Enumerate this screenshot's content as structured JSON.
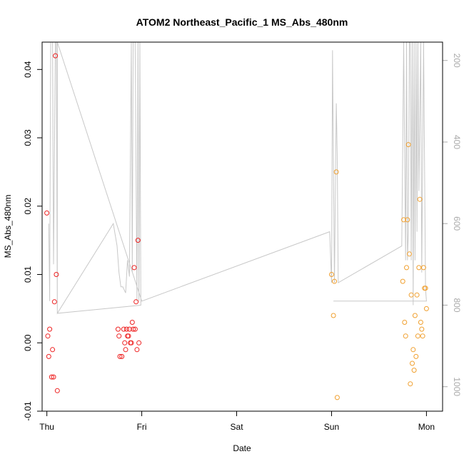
{
  "chart_data": {
    "type": "scatter",
    "title": "ATOM2 Northeast_Pacific_1 MS_Abs_480nm",
    "xlabel": "Date",
    "ylabel": "MS_Abs_480nm",
    "x_ticks": [
      "Thu",
      "Fri",
      "Sat",
      "Sun",
      "Mon"
    ],
    "xlim": [
      -0.05,
      4.17
    ],
    "ylim": [
      -0.01,
      0.044
    ],
    "y_ticks": [
      -0.01,
      0.0,
      0.01,
      0.02,
      0.03,
      0.04
    ],
    "y_tick_labels": [
      "-0.01",
      "0.00",
      "0.01",
      "0.02",
      "0.03",
      "0.04"
    ],
    "y2_ticks": [
      200,
      400,
      600,
      800,
      1000
    ],
    "y2_tick_labels": [
      "200",
      "400",
      "600",
      "800",
      "1000"
    ],
    "y2lim": [
      1060,
      155
    ],
    "y2_reversed": true,
    "grid": false,
    "colors": {
      "series_1": "#ee2222",
      "series_2": "#f0a030",
      "depth_line": "#c8c8c8"
    },
    "series": [
      {
        "color": "#ee2222",
        "points": [
          [
            0.0,
            0.019
          ],
          [
            0.01,
            0.001
          ],
          [
            0.02,
            -0.002
          ],
          [
            0.03,
            0.002
          ],
          [
            0.05,
            -0.005
          ],
          [
            0.06,
            -0.001
          ],
          [
            0.07,
            -0.005
          ],
          [
            0.08,
            0.006
          ],
          [
            0.09,
            0.042
          ],
          [
            0.1,
            0.01
          ],
          [
            0.11,
            -0.007
          ],
          [
            0.75,
            0.002
          ],
          [
            0.76,
            0.001
          ],
          [
            0.77,
            -0.002
          ],
          [
            0.79,
            -0.002
          ],
          [
            0.81,
            0.002
          ],
          [
            0.82,
            0.0
          ],
          [
            0.83,
            -0.001
          ],
          [
            0.84,
            0.002
          ],
          [
            0.85,
            0.001
          ],
          [
            0.86,
            0.001
          ],
          [
            0.87,
            0.002
          ],
          [
            0.88,
            0.0
          ],
          [
            0.89,
            0.0
          ],
          [
            0.9,
            0.003
          ],
          [
            0.91,
            0.002
          ],
          [
            0.92,
            0.011
          ],
          [
            0.93,
            0.002
          ],
          [
            0.94,
            0.006
          ],
          [
            0.95,
            -0.001
          ],
          [
            0.96,
            0.015
          ],
          [
            0.97,
            0.0
          ]
        ]
      },
      {
        "color": "#f0a030",
        "points": [
          [
            3.0,
            0.01
          ],
          [
            3.02,
            0.004
          ],
          [
            3.03,
            0.009
          ],
          [
            3.05,
            0.025
          ],
          [
            3.06,
            -0.008
          ],
          [
            3.75,
            0.009
          ],
          [
            3.76,
            0.018
          ],
          [
            3.77,
            0.003
          ],
          [
            3.78,
            0.001
          ],
          [
            3.79,
            0.011
          ],
          [
            3.8,
            0.018
          ],
          [
            3.81,
            0.029
          ],
          [
            3.82,
            0.013
          ],
          [
            3.83,
            -0.006
          ],
          [
            3.84,
            0.007
          ],
          [
            3.85,
            -0.003
          ],
          [
            3.86,
            -0.001
          ],
          [
            3.87,
            -0.004
          ],
          [
            3.88,
            0.004
          ],
          [
            3.89,
            -0.002
          ],
          [
            3.9,
            0.007
          ],
          [
            3.91,
            0.001
          ],
          [
            3.92,
            0.011
          ],
          [
            3.93,
            0.021
          ],
          [
            3.94,
            0.003
          ],
          [
            3.95,
            0.002
          ],
          [
            3.96,
            0.001
          ],
          [
            3.97,
            0.011
          ],
          [
            3.98,
            0.008
          ],
          [
            3.99,
            0.008
          ],
          [
            4.0,
            0.005
          ]
        ]
      }
    ],
    "depth_line": [
      [
        0.02,
        600
      ],
      [
        0.03,
        790
      ],
      [
        0.04,
        140
      ],
      [
        0.06,
        140
      ],
      [
        0.07,
        700
      ],
      [
        0.09,
        140
      ],
      [
        0.1,
        140
      ],
      [
        0.11,
        820
      ],
      [
        0.7,
        600
      ],
      [
        0.74,
        655
      ],
      [
        0.76,
        720
      ],
      [
        0.78,
        755
      ],
      [
        0.8,
        755
      ],
      [
        0.83,
        770
      ],
      [
        0.85,
        690
      ],
      [
        0.87,
        730
      ],
      [
        0.89,
        140
      ],
      [
        0.9,
        720
      ],
      [
        0.91,
        140
      ],
      [
        0.93,
        140
      ],
      [
        0.95,
        790
      ],
      [
        0.96,
        140
      ],
      [
        0.97,
        790
      ],
      [
        0.98,
        140
      ],
      [
        0.99,
        800
      ],
      [
        0.11,
        820
      ],
      [
        0.11,
        140
      ],
      [
        1.0,
        790
      ],
      [
        2.98,
        620
      ],
      [
        3.0,
        745
      ],
      [
        3.01,
        175
      ],
      [
        3.03,
        745
      ],
      [
        3.05,
        305
      ],
      [
        3.06,
        430
      ],
      [
        3.07,
        745
      ],
      [
        3.74,
        655
      ],
      [
        3.76,
        140
      ],
      [
        3.78,
        690
      ],
      [
        3.79,
        140
      ],
      [
        3.8,
        690
      ],
      [
        3.81,
        620
      ],
      [
        3.82,
        140
      ],
      [
        3.83,
        140
      ],
      [
        3.84,
        690
      ],
      [
        3.85,
        140
      ],
      [
        3.86,
        800
      ],
      [
        3.87,
        140
      ],
      [
        3.88,
        690
      ],
      [
        3.89,
        140
      ],
      [
        3.9,
        620
      ],
      [
        3.91,
        140
      ],
      [
        3.92,
        520
      ],
      [
        3.94,
        140
      ],
      [
        3.95,
        720
      ],
      [
        3.97,
        140
      ],
      [
        3.99,
        760
      ],
      [
        4.0,
        790
      ],
      [
        3.02,
        790
      ]
    ]
  }
}
